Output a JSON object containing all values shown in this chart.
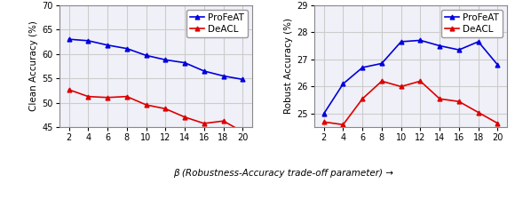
{
  "x": [
    2,
    4,
    6,
    8,
    10,
    12,
    14,
    16,
    18,
    20
  ],
  "clean_profeat": [
    63.0,
    62.7,
    61.8,
    61.1,
    59.7,
    58.8,
    58.2,
    56.5,
    55.5,
    54.8
  ],
  "clean_deacl": [
    52.7,
    51.3,
    51.1,
    51.3,
    49.6,
    48.8,
    47.1,
    45.8,
    46.3,
    44.1
  ],
  "robust_profeat": [
    25.0,
    26.1,
    26.7,
    26.85,
    27.65,
    27.7,
    27.5,
    27.35,
    27.65,
    26.8
  ],
  "robust_deacl": [
    24.7,
    24.6,
    25.55,
    26.2,
    26.0,
    26.2,
    25.55,
    25.45,
    25.05,
    24.65
  ],
  "clean_ylim": [
    45,
    70
  ],
  "clean_yticks": [
    45,
    50,
    55,
    60,
    65,
    70
  ],
  "robust_ylim": [
    24.5,
    29
  ],
  "robust_yticks": [
    25,
    26,
    27,
    28,
    29
  ],
  "blue_color": "#0000dd",
  "red_color": "#dd0000",
  "xlabel": "β (Robustness-Accuracy trade-off parameter) →",
  "ylabel_clean": "Clean Accuracy (%)",
  "ylabel_robust": "Robust Accuracy (%)",
  "label_profeat": "ProFeAT",
  "label_deacl": "DeACL",
  "grid_color": "#cccccc",
  "bg_color": "#f0f0f8",
  "legend_fontsize": 7.5,
  "axis_fontsize": 7.5,
  "tick_fontsize": 7.0
}
